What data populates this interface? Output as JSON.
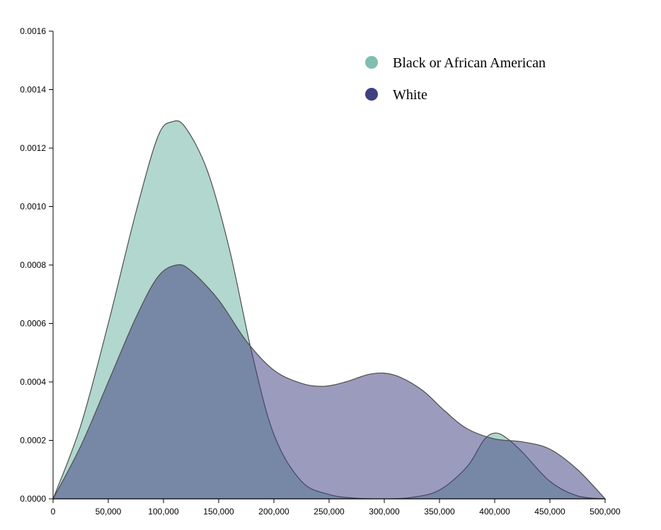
{
  "chart_data": {
    "type": "area",
    "title": "",
    "xlabel": "",
    "ylabel": "",
    "xlim": [
      0,
      500000
    ],
    "ylim": [
      0,
      0.0016
    ],
    "x_ticks": [
      0,
      50000,
      100000,
      150000,
      200000,
      250000,
      300000,
      350000,
      400000,
      450000,
      500000
    ],
    "x_tick_labels": [
      "0",
      "50,000",
      "100,000",
      "150,000",
      "200,000",
      "250,000",
      "300,000",
      "350,000",
      "400,000",
      "450,000",
      "500,000"
    ],
    "y_ticks": [
      0,
      0.0002,
      0.0004,
      0.0006,
      0.0008,
      0.001,
      0.0012,
      0.0014,
      0.0016
    ],
    "y_tick_labels": [
      "0.0000",
      "0.0002",
      "0.0004",
      "0.0006",
      "0.0008",
      "0.0010",
      "0.0012",
      "0.0014",
      "0.0016"
    ],
    "grid": false,
    "legend_position": "top-right",
    "series": [
      {
        "name": "Black or African American",
        "color": "#69b3a2",
        "points": [
          [
            0,
            0
          ],
          [
            25000,
            0.00025
          ],
          [
            50000,
            0.0006
          ],
          [
            75000,
            0.00098
          ],
          [
            95000,
            0.00124
          ],
          [
            108000,
            0.00129
          ],
          [
            120000,
            0.00127
          ],
          [
            140000,
            0.00112
          ],
          [
            160000,
            0.00085
          ],
          [
            180000,
            0.0005
          ],
          [
            200000,
            0.00022
          ],
          [
            225000,
            6e-05
          ],
          [
            250000,
            1.5e-05
          ],
          [
            275000,
            2e-06
          ],
          [
            300000,
            0
          ],
          [
            325000,
            5e-06
          ],
          [
            350000,
            3e-05
          ],
          [
            375000,
            0.00011
          ],
          [
            390000,
            0.0002
          ],
          [
            400000,
            0.000225
          ],
          [
            410000,
            0.00021
          ],
          [
            425000,
            0.00016
          ],
          [
            450000,
            6e-05
          ],
          [
            475000,
            1e-05
          ],
          [
            500000,
            0
          ]
        ]
      },
      {
        "name": "White",
        "color": "#404080",
        "points": [
          [
            0,
            0
          ],
          [
            25000,
            0.00018
          ],
          [
            50000,
            0.0004
          ],
          [
            75000,
            0.00062
          ],
          [
            95000,
            0.00076
          ],
          [
            112000,
            0.0008
          ],
          [
            125000,
            0.00078
          ],
          [
            150000,
            0.00068
          ],
          [
            175000,
            0.00054
          ],
          [
            200000,
            0.00044
          ],
          [
            225000,
            0.000395
          ],
          [
            245000,
            0.000385
          ],
          [
            265000,
            0.0004
          ],
          [
            285000,
            0.000425
          ],
          [
            300000,
            0.00043
          ],
          [
            315000,
            0.000415
          ],
          [
            335000,
            0.00037
          ],
          [
            355000,
            0.0003
          ],
          [
            375000,
            0.00024
          ],
          [
            400000,
            0.000205
          ],
          [
            425000,
            0.000195
          ],
          [
            450000,
            0.00017
          ],
          [
            475000,
            0.0001
          ],
          [
            500000,
            0
          ]
        ]
      }
    ]
  }
}
